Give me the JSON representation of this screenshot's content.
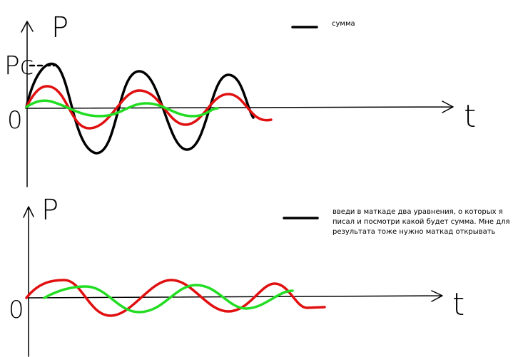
{
  "top_plot": {
    "y_label": "P",
    "level_label": "Pc",
    "origin_label": "0",
    "x_label": "t",
    "legend": "сумма"
  },
  "bottom_plot": {
    "y_label": "P",
    "origin_label": "0",
    "x_label": "t",
    "note_lines": [
      "введи в маткаде два уравнения, о которых я",
      "писал и посмотри какой будет сумма. Мне для",
      "результата тоже нужно маткад открывать"
    ]
  }
}
